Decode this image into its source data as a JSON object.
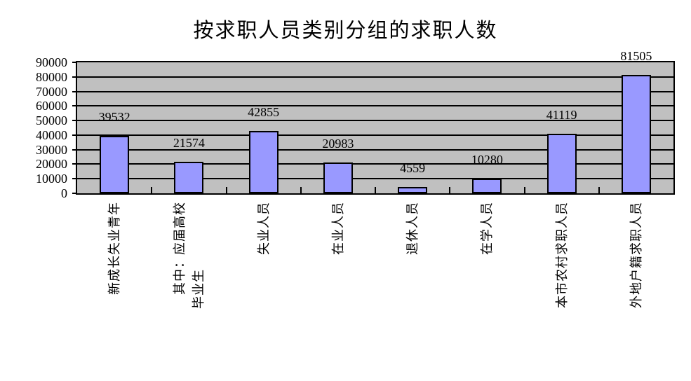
{
  "chart_data": {
    "type": "bar",
    "title": "按求职人员类别分组的求职人数",
    "categories": [
      "新成长失业青年",
      "其中：应届高校\n毕业生",
      "失业人员",
      "在业人员",
      "退休人员",
      "在学人员",
      "本市农村求职人员",
      "外地户籍求职人员"
    ],
    "values": [
      39532,
      21574,
      42855,
      20983,
      4559,
      10280,
      41119,
      81505
    ],
    "data_labels": [
      "39532",
      "21574",
      "42855",
      "20983",
      "4559",
      "10280",
      "41119",
      "81505"
    ],
    "ylim": [
      0,
      90000
    ],
    "ytick_step": 10000,
    "ytick_labels": [
      "0",
      "10000",
      "20000",
      "30000",
      "40000",
      "50000",
      "60000",
      "70000",
      "80000",
      "90000"
    ],
    "xlabel": "",
    "ylabel": "",
    "legend": "none",
    "grid": "horizontal",
    "colors": {
      "bar_fill": "#9999FF",
      "bar_border": "#000000",
      "plot_background": "#C0C0C0",
      "gridline": "#000000",
      "text": "#000000",
      "background": "#FFFFFF"
    }
  }
}
